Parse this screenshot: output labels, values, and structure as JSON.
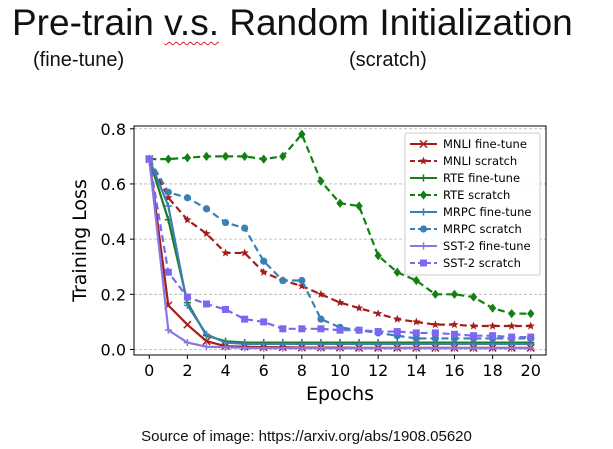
{
  "slide": {
    "title_part1": "Pre-train ",
    "title_part2": "v.s.",
    "title_part3": " Random Initialization",
    "subtitle_left": "(fine-tune)",
    "subtitle_right": "(scratch)",
    "caption": "Source of image: https://arxiv.org/abs/1908.05620"
  },
  "chart_data": {
    "type": "line",
    "title": "",
    "xlabel": "Epochs",
    "ylabel": "Training Loss",
    "xlim": [
      -0.8,
      20.8
    ],
    "ylim": [
      -0.02,
      0.81
    ],
    "xticks": [
      0,
      2,
      4,
      6,
      8,
      10,
      12,
      14,
      16,
      18,
      20
    ],
    "yticks": [
      0.0,
      0.2,
      0.4,
      0.6,
      0.8
    ],
    "ytick_labels": [
      "0.0",
      "0.2",
      "0.4",
      "0.6",
      "0.8"
    ],
    "grid": "horizontal dashed",
    "legend_position": "upper-right",
    "x": [
      0,
      1,
      2,
      3,
      4,
      5,
      6,
      7,
      8,
      9,
      10,
      11,
      12,
      13,
      14,
      15,
      16,
      17,
      18,
      19,
      20
    ],
    "series": [
      {
        "name": "MNLI fine-tune",
        "color": "#a61c1c",
        "dash": "solid",
        "marker": "x",
        "values": [
          0.69,
          0.16,
          0.09,
          0.03,
          0.012,
          0.01,
          0.008,
          0.008,
          0.007,
          0.007,
          0.007,
          0.006,
          0.006,
          0.006,
          0.006,
          0.006,
          0.006,
          0.006,
          0.006,
          0.006,
          0.006
        ]
      },
      {
        "name": "MNLI scratch",
        "color": "#a61c1c",
        "dash": "dashed",
        "marker": "star",
        "values": [
          0.69,
          0.55,
          0.47,
          0.42,
          0.35,
          0.35,
          0.28,
          0.25,
          0.23,
          0.2,
          0.17,
          0.15,
          0.13,
          0.11,
          0.1,
          0.09,
          0.09,
          0.085,
          0.085,
          0.085,
          0.085
        ]
      },
      {
        "name": "RTE fine-tune",
        "color": "#1e7a1e",
        "dash": "solid",
        "marker": "plus",
        "values": [
          0.69,
          0.47,
          0.17,
          0.05,
          0.03,
          0.025,
          0.025,
          0.025,
          0.025,
          0.025,
          0.025,
          0.025,
          0.025,
          0.025,
          0.025,
          0.025,
          0.025,
          0.025,
          0.025,
          0.025,
          0.025
        ]
      },
      {
        "name": "RTE scratch",
        "color": "#128012",
        "dash": "dashed",
        "marker": "diamond",
        "values": [
          0.69,
          0.69,
          0.695,
          0.7,
          0.7,
          0.7,
          0.69,
          0.7,
          0.78,
          0.61,
          0.53,
          0.52,
          0.34,
          0.28,
          0.25,
          0.2,
          0.2,
          0.19,
          0.15,
          0.13,
          0.13
        ]
      },
      {
        "name": "MRPC fine-tune",
        "color": "#3a80b5",
        "dash": "solid",
        "marker": "plus",
        "values": [
          0.69,
          0.52,
          0.16,
          0.055,
          0.025,
          0.02,
          0.02,
          0.02,
          0.02,
          0.02,
          0.02,
          0.02,
          0.02,
          0.02,
          0.02,
          0.02,
          0.02,
          0.02,
          0.02,
          0.02,
          0.02
        ]
      },
      {
        "name": "MRPC scratch",
        "color": "#3a80b5",
        "dash": "dashed",
        "marker": "circle",
        "values": [
          0.69,
          0.57,
          0.55,
          0.51,
          0.46,
          0.44,
          0.32,
          0.25,
          0.25,
          0.11,
          0.08,
          0.07,
          0.06,
          0.05,
          0.04,
          0.04,
          0.04,
          0.04,
          0.04,
          0.04,
          0.04
        ]
      },
      {
        "name": "SST-2 fine-tune",
        "color": "#8a78e0",
        "dash": "solid",
        "marker": "plus",
        "values": [
          0.69,
          0.07,
          0.025,
          0.01,
          0.008,
          0.006,
          0.005,
          0.005,
          0.005,
          0.005,
          0.005,
          0.005,
          0.005,
          0.005,
          0.005,
          0.005,
          0.005,
          0.005,
          0.005,
          0.005,
          0.005
        ]
      },
      {
        "name": "SST-2 scratch",
        "color": "#7b68ee",
        "dash": "dashed",
        "marker": "square",
        "values": [
          0.69,
          0.28,
          0.19,
          0.165,
          0.145,
          0.11,
          0.1,
          0.075,
          0.075,
          0.075,
          0.07,
          0.07,
          0.065,
          0.065,
          0.06,
          0.06,
          0.055,
          0.05,
          0.05,
          0.045,
          0.045
        ]
      }
    ]
  }
}
